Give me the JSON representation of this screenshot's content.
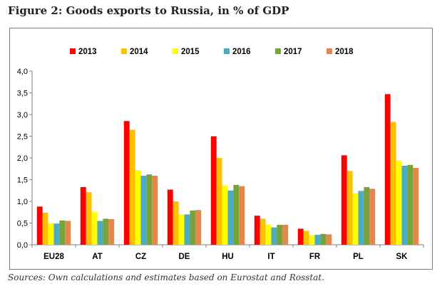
{
  "figure": {
    "title": "Figure 2: Goods exports to Russia, in % of GDP",
    "source": "Sources: Own calculations and estimates based on Eurostat and Rosstat."
  },
  "chart_data": {
    "type": "bar",
    "title": "",
    "xlabel": "",
    "ylabel": "",
    "ylim": [
      0,
      4
    ],
    "y_ticks": [
      "0,0",
      "0,5",
      "1,0",
      "1,5",
      "2,0",
      "2,5",
      "3,0",
      "3,5",
      "4,0"
    ],
    "grid": false,
    "legend_position": "top-center",
    "categories": [
      "EU28",
      "AT",
      "CZ",
      "DE",
      "HU",
      "IT",
      "FR",
      "PL",
      "SK"
    ],
    "series": [
      {
        "name": "2013",
        "color": "#ff0000",
        "values": [
          0.88,
          1.33,
          2.85,
          1.27,
          2.5,
          0.67,
          0.37,
          2.06,
          3.47
        ]
      },
      {
        "name": "2014",
        "color": "#ffc000",
        "values": [
          0.74,
          1.21,
          2.65,
          1.0,
          2.0,
          0.6,
          0.32,
          1.7,
          2.83
        ]
      },
      {
        "name": "2015",
        "color": "#ffff00",
        "values": [
          0.5,
          0.76,
          1.72,
          0.7,
          1.37,
          0.46,
          0.22,
          1.19,
          1.94
        ]
      },
      {
        "name": "2016",
        "color": "#4bacc6",
        "values": [
          0.49,
          0.55,
          1.59,
          0.7,
          1.25,
          0.4,
          0.23,
          1.24,
          1.82
        ]
      },
      {
        "name": "2017",
        "color": "#77a33a",
        "values": [
          0.56,
          0.6,
          1.62,
          0.79,
          1.38,
          0.46,
          0.25,
          1.33,
          1.84
        ]
      },
      {
        "name": "2018",
        "color": "#e3884a",
        "values": [
          0.55,
          0.59,
          1.59,
          0.8,
          1.35,
          0.46,
          0.24,
          1.29,
          1.77
        ]
      }
    ]
  }
}
